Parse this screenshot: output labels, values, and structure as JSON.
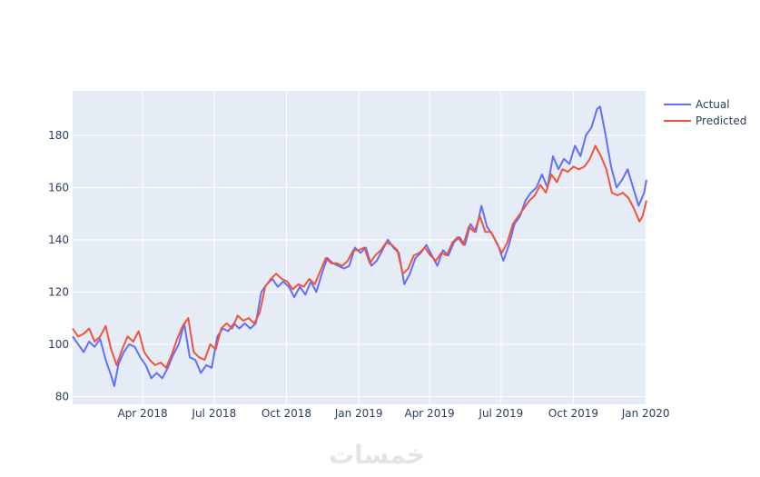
{
  "watermark": "خمسات",
  "chart_data": {
    "type": "line",
    "title": "",
    "xlabel": "",
    "ylabel": "",
    "x_range": [
      "2018-01-02",
      "2020-01-02"
    ],
    "ylim": [
      77,
      197
    ],
    "grid": true,
    "legend_position": "top-right",
    "x_ticks": [
      {
        "date": "2018-04-01",
        "label": "Apr 2018"
      },
      {
        "date": "2018-07-01",
        "label": "Jul 2018"
      },
      {
        "date": "2018-10-01",
        "label": "Oct 2018"
      },
      {
        "date": "2019-01-01",
        "label": "Jan 2019"
      },
      {
        "date": "2019-04-01",
        "label": "Apr 2019"
      },
      {
        "date": "2019-07-01",
        "label": "Jul 2019"
      },
      {
        "date": "2019-10-01",
        "label": "Oct 2019"
      },
      {
        "date": "2020-01-01",
        "label": "Jan 2020"
      }
    ],
    "y_ticks": [
      80,
      100,
      120,
      140,
      160,
      180
    ],
    "colors": {
      "plot_bg": "#e5ecf6",
      "grid": "#ffffff",
      "actual": "#636efa",
      "predicted": "#ef553b"
    },
    "series": [
      {
        "name": "Actual",
        "points": [
          [
            "2018-01-02",
            103
          ],
          [
            "2018-01-09",
            100
          ],
          [
            "2018-01-16",
            97
          ],
          [
            "2018-01-23",
            101
          ],
          [
            "2018-01-30",
            99
          ],
          [
            "2018-02-06",
            102
          ],
          [
            "2018-02-13",
            94
          ],
          [
            "2018-02-20",
            88
          ],
          [
            "2018-02-24",
            84
          ],
          [
            "2018-03-01",
            92
          ],
          [
            "2018-03-08",
            97
          ],
          [
            "2018-03-15",
            100
          ],
          [
            "2018-03-22",
            99
          ],
          [
            "2018-03-29",
            95
          ],
          [
            "2018-04-05",
            92
          ],
          [
            "2018-04-12",
            87
          ],
          [
            "2018-04-19",
            89
          ],
          [
            "2018-04-26",
            87
          ],
          [
            "2018-05-03",
            91
          ],
          [
            "2018-05-10",
            96
          ],
          [
            "2018-05-17",
            100
          ],
          [
            "2018-05-24",
            108
          ],
          [
            "2018-05-31",
            95
          ],
          [
            "2018-06-07",
            94
          ],
          [
            "2018-06-14",
            89
          ],
          [
            "2018-06-21",
            92
          ],
          [
            "2018-06-28",
            91
          ],
          [
            "2018-07-05",
            103
          ],
          [
            "2018-07-12",
            106
          ],
          [
            "2018-07-19",
            105
          ],
          [
            "2018-07-26",
            108
          ],
          [
            "2018-08-02",
            106
          ],
          [
            "2018-08-09",
            108
          ],
          [
            "2018-08-16",
            106
          ],
          [
            "2018-08-23",
            108
          ],
          [
            "2018-08-30",
            120
          ],
          [
            "2018-09-06",
            123
          ],
          [
            "2018-09-13",
            125
          ],
          [
            "2018-09-20",
            122
          ],
          [
            "2018-09-27",
            124
          ],
          [
            "2018-10-04",
            122
          ],
          [
            "2018-10-11",
            118
          ],
          [
            "2018-10-18",
            122
          ],
          [
            "2018-10-25",
            119
          ],
          [
            "2018-11-01",
            124
          ],
          [
            "2018-11-08",
            120
          ],
          [
            "2018-11-15",
            127
          ],
          [
            "2018-11-22",
            133
          ],
          [
            "2018-11-29",
            131
          ],
          [
            "2018-12-06",
            130
          ],
          [
            "2018-12-13",
            129
          ],
          [
            "2018-12-20",
            130
          ],
          [
            "2018-12-27",
            137
          ],
          [
            "2019-01-03",
            135
          ],
          [
            "2019-01-10",
            137
          ],
          [
            "2019-01-17",
            130
          ],
          [
            "2019-01-24",
            132
          ],
          [
            "2019-01-31",
            136
          ],
          [
            "2019-02-07",
            140
          ],
          [
            "2019-02-14",
            137
          ],
          [
            "2019-02-21",
            135
          ],
          [
            "2019-02-28",
            123
          ],
          [
            "2019-03-07",
            127
          ],
          [
            "2019-03-14",
            133
          ],
          [
            "2019-03-21",
            135
          ],
          [
            "2019-03-28",
            138
          ],
          [
            "2019-04-04",
            134
          ],
          [
            "2019-04-11",
            130
          ],
          [
            "2019-04-18",
            136
          ],
          [
            "2019-04-25",
            134
          ],
          [
            "2019-05-02",
            139
          ],
          [
            "2019-05-09",
            141
          ],
          [
            "2019-05-16",
            138
          ],
          [
            "2019-05-23",
            146
          ],
          [
            "2019-05-30",
            143
          ],
          [
            "2019-06-06",
            153
          ],
          [
            "2019-06-13",
            145
          ],
          [
            "2019-06-20",
            142
          ],
          [
            "2019-06-27",
            138
          ],
          [
            "2019-07-04",
            132
          ],
          [
            "2019-07-11",
            138
          ],
          [
            "2019-07-18",
            146
          ],
          [
            "2019-07-25",
            149
          ],
          [
            "2019-08-01",
            155
          ],
          [
            "2019-08-08",
            158
          ],
          [
            "2019-08-15",
            160
          ],
          [
            "2019-08-22",
            165
          ],
          [
            "2019-08-29",
            160
          ],
          [
            "2019-09-05",
            172
          ],
          [
            "2019-09-12",
            167
          ],
          [
            "2019-09-19",
            171
          ],
          [
            "2019-09-26",
            169
          ],
          [
            "2019-10-03",
            176
          ],
          [
            "2019-10-10",
            172
          ],
          [
            "2019-10-17",
            180
          ],
          [
            "2019-10-24",
            183
          ],
          [
            "2019-10-31",
            190
          ],
          [
            "2019-11-04",
            191
          ],
          [
            "2019-11-11",
            180
          ],
          [
            "2019-11-18",
            168
          ],
          [
            "2019-11-25",
            160
          ],
          [
            "2019-12-02",
            163
          ],
          [
            "2019-12-09",
            167
          ],
          [
            "2019-12-16",
            160
          ],
          [
            "2019-12-23",
            153
          ],
          [
            "2019-12-30",
            158
          ],
          [
            "2020-01-02",
            163
          ]
        ]
      },
      {
        "name": "Predicted",
        "points": [
          [
            "2018-01-02",
            106
          ],
          [
            "2018-01-09",
            103
          ],
          [
            "2018-01-16",
            104
          ],
          [
            "2018-01-23",
            106
          ],
          [
            "2018-01-30",
            101
          ],
          [
            "2018-02-06",
            103
          ],
          [
            "2018-02-13",
            107
          ],
          [
            "2018-02-20",
            98
          ],
          [
            "2018-02-27",
            92
          ],
          [
            "2018-03-06",
            98
          ],
          [
            "2018-03-13",
            103
          ],
          [
            "2018-03-20",
            101
          ],
          [
            "2018-03-27",
            105
          ],
          [
            "2018-04-03",
            97
          ],
          [
            "2018-04-10",
            94
          ],
          [
            "2018-04-17",
            92
          ],
          [
            "2018-04-24",
            93
          ],
          [
            "2018-05-01",
            91
          ],
          [
            "2018-05-08",
            96
          ],
          [
            "2018-05-15",
            102
          ],
          [
            "2018-05-22",
            107
          ],
          [
            "2018-05-29",
            110
          ],
          [
            "2018-06-05",
            97
          ],
          [
            "2018-06-12",
            95
          ],
          [
            "2018-06-19",
            94
          ],
          [
            "2018-06-26",
            100
          ],
          [
            "2018-07-03",
            98
          ],
          [
            "2018-07-10",
            106
          ],
          [
            "2018-07-17",
            108
          ],
          [
            "2018-07-24",
            106
          ],
          [
            "2018-07-31",
            111
          ],
          [
            "2018-08-07",
            109
          ],
          [
            "2018-08-14",
            110
          ],
          [
            "2018-08-21",
            108
          ],
          [
            "2018-08-28",
            112
          ],
          [
            "2018-09-04",
            122
          ],
          [
            "2018-09-11",
            125
          ],
          [
            "2018-09-18",
            127
          ],
          [
            "2018-09-25",
            125
          ],
          [
            "2018-10-02",
            124
          ],
          [
            "2018-10-09",
            121
          ],
          [
            "2018-10-16",
            123
          ],
          [
            "2018-10-23",
            122
          ],
          [
            "2018-10-30",
            125
          ],
          [
            "2018-11-06",
            123
          ],
          [
            "2018-11-13",
            128
          ],
          [
            "2018-11-20",
            133
          ],
          [
            "2018-11-27",
            131
          ],
          [
            "2018-12-04",
            131
          ],
          [
            "2018-12-11",
            130
          ],
          [
            "2018-12-18",
            132
          ],
          [
            "2018-12-25",
            136
          ],
          [
            "2019-01-01",
            136
          ],
          [
            "2019-01-08",
            137
          ],
          [
            "2019-01-15",
            131
          ],
          [
            "2019-01-22",
            134
          ],
          [
            "2019-01-29",
            136
          ],
          [
            "2019-02-05",
            139
          ],
          [
            "2019-02-12",
            138
          ],
          [
            "2019-02-19",
            136
          ],
          [
            "2019-02-26",
            127
          ],
          [
            "2019-03-05",
            129
          ],
          [
            "2019-03-12",
            134
          ],
          [
            "2019-03-19",
            135
          ],
          [
            "2019-03-26",
            137
          ],
          [
            "2019-04-02",
            134
          ],
          [
            "2019-04-09",
            132
          ],
          [
            "2019-04-16",
            135
          ],
          [
            "2019-04-23",
            134
          ],
          [
            "2019-04-30",
            139
          ],
          [
            "2019-05-07",
            141
          ],
          [
            "2019-05-14",
            138
          ],
          [
            "2019-05-21",
            145
          ],
          [
            "2019-05-28",
            143
          ],
          [
            "2019-06-04",
            149
          ],
          [
            "2019-06-11",
            143
          ],
          [
            "2019-06-18",
            143
          ],
          [
            "2019-06-25",
            139
          ],
          [
            "2019-07-02",
            135
          ],
          [
            "2019-07-09",
            139
          ],
          [
            "2019-07-16",
            146
          ],
          [
            "2019-07-23",
            149
          ],
          [
            "2019-07-30",
            152
          ],
          [
            "2019-08-06",
            155
          ],
          [
            "2019-08-13",
            157
          ],
          [
            "2019-08-20",
            161
          ],
          [
            "2019-08-27",
            158
          ],
          [
            "2019-09-03",
            165
          ],
          [
            "2019-09-10",
            162
          ],
          [
            "2019-09-17",
            167
          ],
          [
            "2019-09-24",
            166
          ],
          [
            "2019-10-01",
            168
          ],
          [
            "2019-10-08",
            167
          ],
          [
            "2019-10-15",
            168
          ],
          [
            "2019-10-22",
            171
          ],
          [
            "2019-10-29",
            176
          ],
          [
            "2019-11-05",
            172
          ],
          [
            "2019-11-12",
            167
          ],
          [
            "2019-11-19",
            158
          ],
          [
            "2019-11-26",
            157
          ],
          [
            "2019-12-03",
            158
          ],
          [
            "2019-12-10",
            156
          ],
          [
            "2019-12-17",
            152
          ],
          [
            "2019-12-24",
            147
          ],
          [
            "2019-12-28",
            149
          ],
          [
            "2020-01-02",
            155
          ]
        ]
      }
    ]
  }
}
